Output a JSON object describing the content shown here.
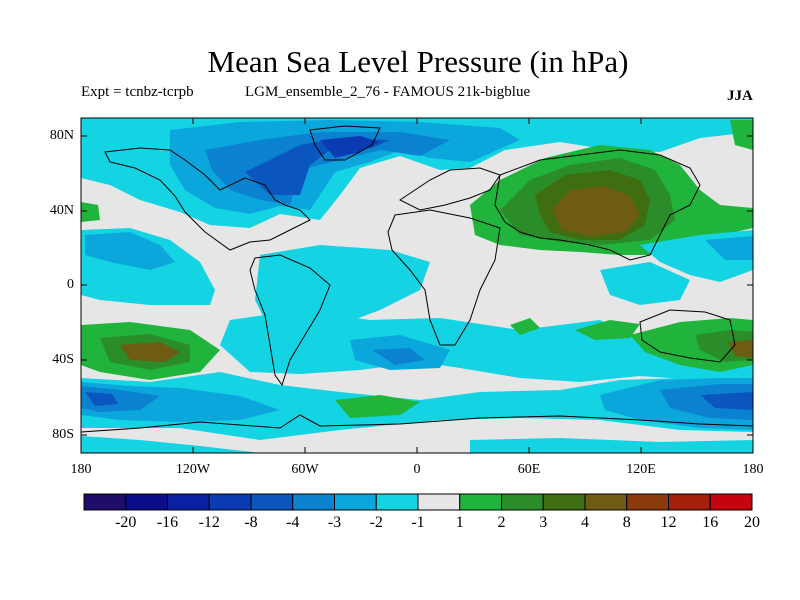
{
  "header": {
    "title": "Mean Sea Level Pressure (in hPa)",
    "experiment": "Expt = tcnbz-tcrpb",
    "run": "LGM_ensemble_2_76 - FAMOUS 21k-bigblue",
    "season": "JJA"
  },
  "axes": {
    "lat_labels": [
      "80N",
      "40N",
      "0",
      "40S",
      "80S"
    ],
    "lon_labels": [
      "180",
      "120W",
      "60W",
      "0",
      "60E",
      "120E",
      "180"
    ]
  },
  "colorbar": {
    "labels": [
      "-20",
      "-16",
      "-12",
      "-8",
      "-4",
      "-3",
      "-2",
      "-1",
      "1",
      "2",
      "3",
      "4",
      "8",
      "12",
      "16",
      "20"
    ],
    "colors": [
      "#200d69",
      "#0c0d88",
      "#0a20a3",
      "#0b3bb3",
      "#0b55bf",
      "#0a82cf",
      "#0aa6dc",
      "#14d3e3",
      "#e6e6e6",
      "#20b43c",
      "#2a8d2a",
      "#3e6e10",
      "#6e5c12",
      "#8b3a0c",
      "#a4200a",
      "#c6040d"
    ]
  },
  "map_fills": {
    "background": "#e6e6e6",
    "coast_color": "#000000"
  }
}
